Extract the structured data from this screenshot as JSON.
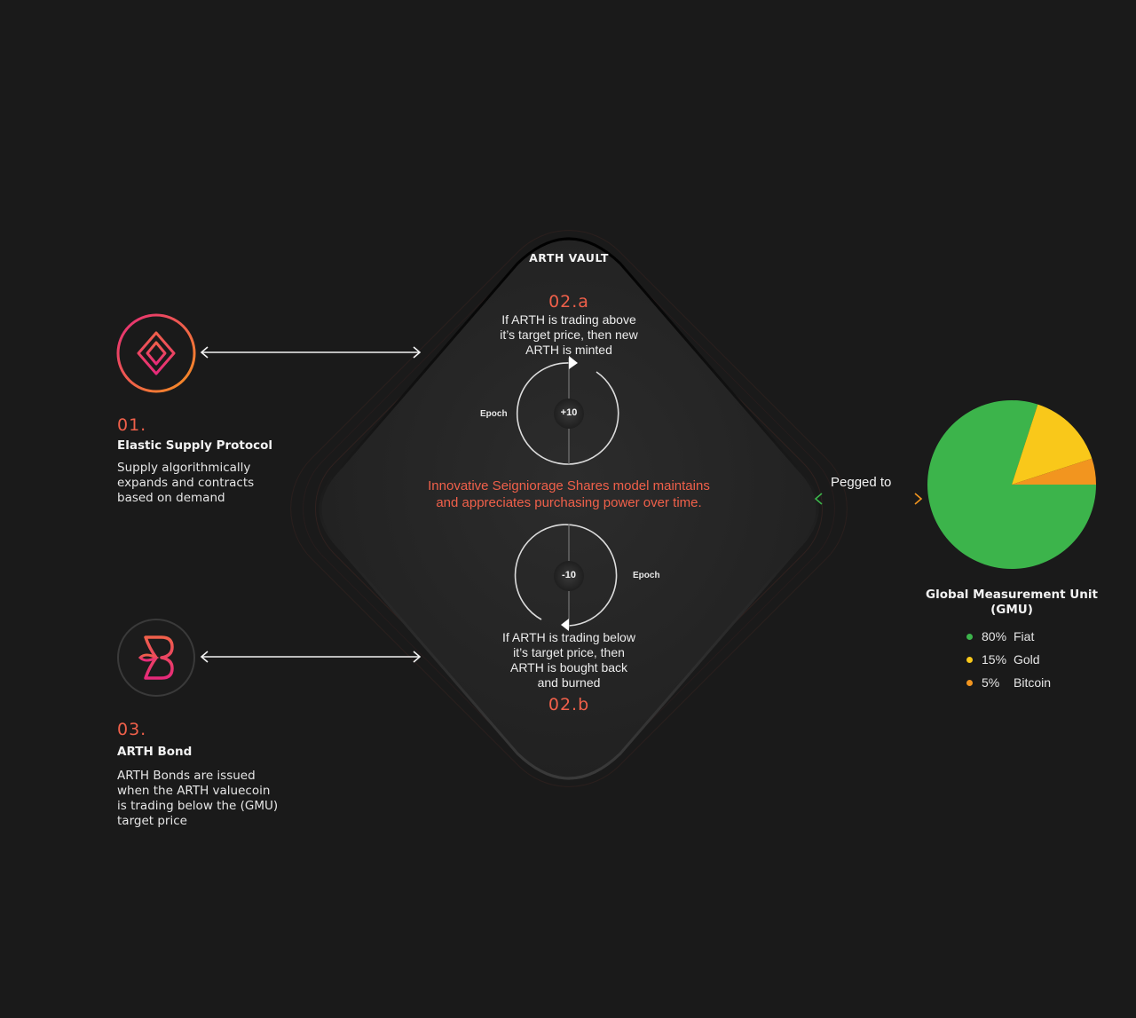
{
  "vault": {
    "title": "ARTH VAULT",
    "mint": {
      "num": "02.a",
      "lines": [
        "If ARTH is trading above",
        "it’s target price, then new",
        "ARTH is minted"
      ],
      "epoch_label": "Epoch",
      "value": "+10"
    },
    "center_text": [
      "Innovative Seigniorage Shares model maintains",
      "and appreciates purchasing power over time."
    ],
    "burn": {
      "num": "02.b",
      "lines": [
        "If ARTH is trading below",
        "it’s target price, then",
        "ARTH is bought back",
        "and burned"
      ],
      "epoch_label": "Epoch",
      "value": "-10"
    }
  },
  "protocols": [
    {
      "num": "01.",
      "title": "Elastic Supply Protocol",
      "desc": [
        "Supply algorithmically",
        "expands and contracts",
        "based on demand"
      ],
      "icon": "elastic-supply-logo-icon"
    },
    {
      "num": "03.",
      "title": "ARTH Bond",
      "desc": [
        "ARTH Bonds are issued",
        "when the ARTH valuecoin",
        "is trading below the (GMU)",
        "target price"
      ],
      "icon": "arth-bond-logo-icon"
    }
  ],
  "peg": {
    "label": "Pegged to"
  },
  "gmu": {
    "title": [
      "Global Measurement Unit",
      "(GMU)"
    ],
    "legend": [
      {
        "pct": "80%",
        "label": "Fiat"
      },
      {
        "pct": "15%",
        "label": "Gold"
      },
      {
        "pct": "5%",
        "label": "Bitcoin"
      }
    ]
  },
  "colors": {
    "accent": "#f0604a",
    "fiat": "#3cb44b",
    "gold": "#f9c81a",
    "bitcoin": "#f2951f",
    "background": "#1a1a1a"
  },
  "chart_data": {
    "type": "pie",
    "categories": [
      "Fiat",
      "Gold",
      "Bitcoin"
    ],
    "values": [
      80,
      15,
      5
    ]
  }
}
